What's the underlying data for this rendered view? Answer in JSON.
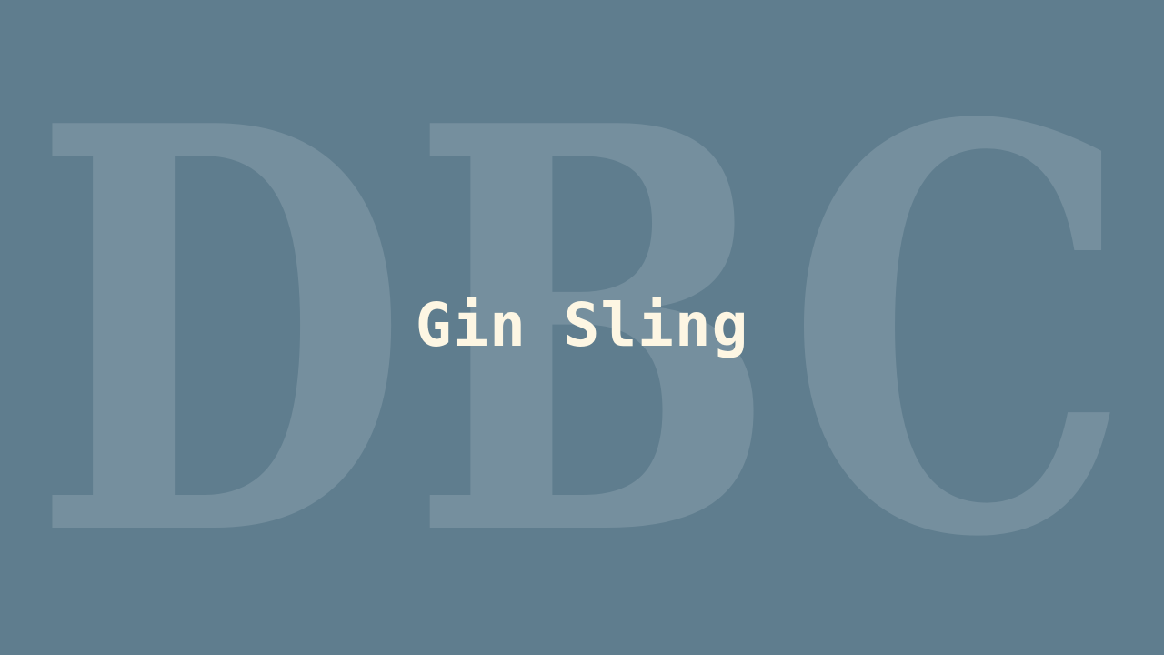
{
  "background_text": "DBC",
  "title": "Gin Sling",
  "colors": {
    "background": "#5f7d8e",
    "title": "#fdf6e3",
    "background_text": "#ffffff"
  }
}
